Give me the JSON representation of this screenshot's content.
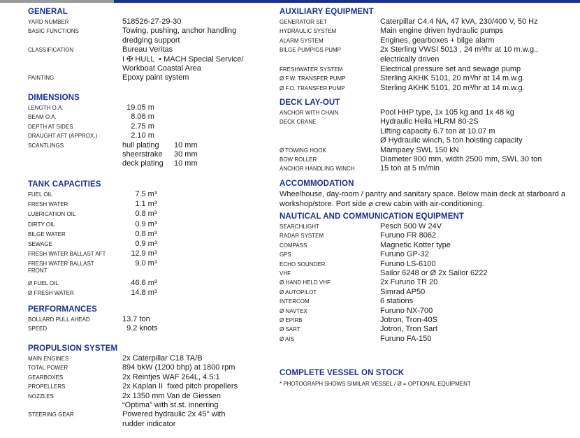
{
  "colors": {
    "heading": "#1b2f8f",
    "top_bar_blue": "#1b2f8f",
    "top_bar_gray": "#9a9a9a"
  },
  "left": [
    {
      "title": "GENERAL",
      "rows": [
        {
          "label": "YARD NUMBER",
          "value": [
            "518526-27-29-30"
          ]
        },
        {
          "label": "BASIC FUNCTIONS",
          "value": [
            "Towing, pushing, anchor handling",
            "dredging support"
          ]
        },
        {
          "label": "CLASSIFICATION",
          "value": [
            "Bureau Veritas",
            "I ✠ HULL  • MACH Special Service/",
            "Workboat Coastal Area"
          ]
        },
        {
          "label": "PAINTING",
          "value": [
            "Epoxy paint system"
          ]
        }
      ]
    },
    {
      "title": "DIMENSIONS",
      "rows": [
        {
          "label": "LENGTH O.A.",
          "value": [
            "  19.05 m"
          ]
        },
        {
          "label": "BEAM O.A.",
          "value": [
            "    8.06 m"
          ]
        },
        {
          "label": "DEPTH AT SIDES",
          "value": [
            "    2.75 m"
          ]
        },
        {
          "label": "DRAUGHT AFT (APPROX.)",
          "value": [
            "    2.10 m"
          ]
        }
      ],
      "scantlings": {
        "label": "SCANTLINGS",
        "items": [
          {
            "part": "hull plating",
            "value": "10 mm"
          },
          {
            "part": "sheerstrake",
            "value": "30 mm"
          },
          {
            "part": "deck plating",
            "value": "10 mm"
          }
        ]
      }
    },
    {
      "title": "TANK CAPACITIES",
      "rows": [
        {
          "label": "FUEL OIL",
          "value": [
            "      7.5 m³"
          ]
        },
        {
          "label": "FRESH WATER",
          "value": [
            "      1.1 m³"
          ]
        },
        {
          "label": "LUBRICATION OIL",
          "value": [
            "      0.8 m³"
          ]
        },
        {
          "label": "DIRTY OIL",
          "value": [
            "      0.9 m³"
          ]
        },
        {
          "label": "BILGE WATER",
          "value": [
            "      0.8 m³"
          ]
        },
        {
          "label": "SEWAGE",
          "value": [
            "      0.9 m³"
          ]
        },
        {
          "label": "FRESH WATER BALLAST AFT",
          "value": [
            "    12.9 m³"
          ]
        },
        {
          "label": "FRESH WATER BALLAST FRONT",
          "value": [
            "      9.0 m³",
            ""
          ]
        },
        {
          "label": "Ø FUEL OIL",
          "value": [
            "    46.6 m³"
          ]
        },
        {
          "label": "Ø FRESH WATER",
          "value": [
            "    14.8 m³"
          ]
        }
      ]
    },
    {
      "title": "PERFORMANCES",
      "rows": [
        {
          "label": "BOLLARD PULL AHEAD",
          "value": [
            "13.7 ton"
          ]
        },
        {
          "label": "SPEED",
          "value": [
            "  9.2 knots"
          ]
        }
      ]
    },
    {
      "title": "PROPULSION SYSTEM",
      "rows": [
        {
          "label": "MAIN ENGINES",
          "value": [
            "2x Caterpillar C18 TA/B"
          ]
        },
        {
          "label": "TOTAL POWER",
          "value": [
            "894 bkW (1200 bhp) at 1800 rpm"
          ]
        },
        {
          "label": "GEARBOXES",
          "value": [
            "2x Reintjes WAF 264L, 4.5:1"
          ]
        },
        {
          "label": "PROPELLERS",
          "value": [
            "2x Kaplan II  fixed pitch propellers"
          ]
        },
        {
          "label": "NOZZLES",
          "value": [
            "2x 1350 mm Van de Giessen",
            "“Optima” with st.st. innerring"
          ]
        },
        {
          "label": "STEERING GEAR",
          "value": [
            "Powered hydraulic 2x 45° with",
            "rudder indicator"
          ]
        }
      ]
    }
  ],
  "right": [
    {
      "title": "AUXILIARY EQUIPMENT",
      "rows": [
        {
          "label": "GENERATOR SET",
          "value": [
            "Caterpillar C4.4 NA, 47 kVA, 230/400 V, 50 Hz"
          ]
        },
        {
          "label": "HYDRAULIC SYSTEM",
          "value": [
            "Main engine driven hydraulic pumps"
          ]
        },
        {
          "label": "ALARM SYSTEM",
          "value": [
            "Engines, gearboxes + bilge alarm"
          ]
        },
        {
          "label": "BILGE PUMP/GS PUMP",
          "value": [
            "2x Sterling VWSI 5013 , 24 m³/hr at 10 m.w.g.,",
            "electrically driven"
          ]
        },
        {
          "label": "FRESHWATER SYSTEM",
          "value": [
            "Electrical pressure set and sewage pump"
          ]
        },
        {
          "label": "Ø F.W. TRANSFER PUMP",
          "value": [
            "Sterling AKHK 5101, 20 m³/hr at 14 m.w.g."
          ]
        },
        {
          "label": "Ø F.O. TRANSFER PUMP",
          "value": [
            "Sterling AKHK 5101, 20 m³/hr at 14 m.w.g."
          ]
        }
      ]
    },
    {
      "title": "DECK LAY-OUT",
      "rows": [
        {
          "label": "ANCHOR WITH CHAIN",
          "value": [
            "Pool HHP type, 1x 105 kg and 1x 48 kg"
          ]
        },
        {
          "label": "DECK CRANE",
          "value": [
            "Hydraulic Heila HLRM 80-2S",
            "Lifting capacity 6.7 ton at 10.07 m",
            "Ø Hydraulic winch, 5 ton hoisting capacity"
          ]
        },
        {
          "label": "Ø TOWING HOOK",
          "value": [
            "Mampaey SWL 150 kN"
          ]
        },
        {
          "label": "BOW ROLLER",
          "value": [
            "Diameter 900 mm, width 2500 mm, SWL 30 ton"
          ]
        },
        {
          "label": "ANCHOR HANDLING WINCH",
          "value": [
            "15 ton at 5 m/min"
          ]
        }
      ]
    },
    {
      "title": "ACCOMMODATION",
      "text": "Wheelhouse, day-room / pantry and sanitary space. Below main deck at starboard a workshop/store. Port side ⌀ crew cabin with air-conditioning."
    },
    {
      "title": "NAUTICAL AND COMMUNICATION EQUIPMENT",
      "rows": [
        {
          "label": "SEARCHLIGHT",
          "value": [
            "Pesch 500 W 24V"
          ]
        },
        {
          "label": "RADAR SYSTEM",
          "value": [
            "Furuno FR 8062"
          ]
        },
        {
          "label": "COMPASS",
          "value": [
            "Magnetic Kotter type"
          ]
        },
        {
          "label": "GPS",
          "value": [
            "Furuno GP-32"
          ]
        },
        {
          "label": "ECHO SOUNDER",
          "value": [
            "Furuno LS-6100"
          ]
        },
        {
          "label": "VHF",
          "value": [
            "Sailor 6248 or Ø 2x Sailor 6222"
          ]
        },
        {
          "label": "Ø HAND HELD VHF",
          "value": [
            "2x Furuno TR 20"
          ]
        },
        {
          "label": "Ø AUTOPILOT",
          "value": [
            "Simrad AP50"
          ]
        },
        {
          "label": "INTERCOM",
          "value": [
            "6 stations"
          ]
        },
        {
          "label": "Ø NAVTEX",
          "value": [
            "Furuno NX-700"
          ]
        },
        {
          "label": "Ø EPIRB",
          "value": [
            "Jotron, Tron-40S"
          ]
        },
        {
          "label": "Ø SART",
          "value": [
            "Jotron, Tron Sart"
          ]
        },
        {
          "label": "Ø AIS",
          "value": [
            "Furuno FA-150"
          ]
        }
      ]
    },
    {
      "title": "COMPLETE VESSEL ON STOCK",
      "note": "* PHOTOGRAPH SHOWS SIMILAR VESSEL / Ø = OPTIONAL EQUIPMENT"
    }
  ]
}
